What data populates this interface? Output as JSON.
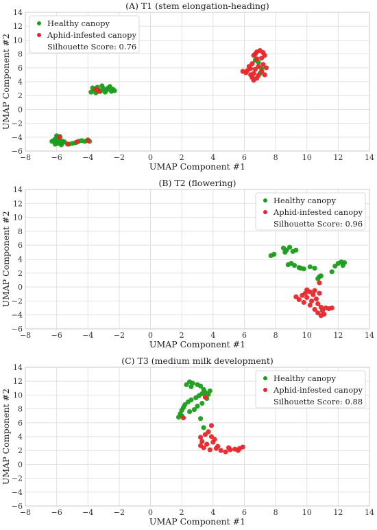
{
  "chart_data": [
    {
      "type": "scatter",
      "title": "(A) T1 (stem elongation-heading)",
      "xlabel": "UMAP Component #1",
      "ylabel": "UMAP Component #2",
      "xlim": [
        -8,
        14
      ],
      "ylim": [
        -6,
        14
      ],
      "xticks": [
        -8,
        -6,
        -4,
        -2,
        0,
        2,
        4,
        6,
        8,
        10,
        12,
        14
      ],
      "yticks": [
        -6,
        -4,
        -2,
        0,
        2,
        4,
        6,
        8,
        10,
        12,
        14
      ],
      "grid": true,
      "legend_position": "top-left",
      "silhouette_text": "Silhouette Score: 0.76",
      "series": [
        {
          "name": "Healthy canopy",
          "color": "#1a9e1a",
          "points": [
            [
              -6.2,
              -4.5
            ],
            [
              -6.0,
              -4.7
            ],
            [
              -5.8,
              -4.4
            ],
            [
              -5.9,
              -4.9
            ],
            [
              -6.1,
              -4.3
            ],
            [
              -5.7,
              -4.8
            ],
            [
              -6.3,
              -4.6
            ],
            [
              -5.6,
              -4.6
            ],
            [
              -5.9,
              -4.1
            ],
            [
              -6.0,
              -3.8
            ],
            [
              -5.8,
              -3.9
            ],
            [
              -5.5,
              -4.7
            ],
            [
              -5.2,
              -5.0
            ],
            [
              -5.0,
              -4.9
            ],
            [
              -4.8,
              -4.8
            ],
            [
              -4.6,
              -4.6
            ],
            [
              -4.4,
              -4.5
            ],
            [
              -4.2,
              -4.6
            ],
            [
              -4.0,
              -4.4
            ],
            [
              -3.9,
              -4.6
            ],
            [
              -5.7,
              -5.1
            ],
            [
              -6.1,
              -5.0
            ],
            [
              -3.8,
              2.5
            ],
            [
              -3.6,
              2.9
            ],
            [
              -3.4,
              3.2
            ],
            [
              -3.2,
              2.6
            ],
            [
              -3.0,
              3.0
            ],
            [
              -2.8,
              2.8
            ],
            [
              -2.6,
              3.3
            ],
            [
              -2.4,
              2.9
            ],
            [
              -2.3,
              2.7
            ],
            [
              -3.5,
              2.4
            ],
            [
              -3.1,
              3.4
            ],
            [
              -2.9,
              2.5
            ],
            [
              -3.7,
              3.1
            ],
            [
              -2.5,
              2.6
            ],
            [
              -3.3,
              2.8
            ],
            [
              -2.7,
              3.1
            ],
            [
              6.9,
              6.8
            ],
            [
              7.1,
              5.9
            ],
            [
              6.7,
              7.1
            ],
            [
              7.0,
              5.2
            ]
          ]
        },
        {
          "name": "Aphid-infested canopy",
          "color": "#e8262a",
          "points": [
            [
              -5.8,
              -4.0
            ],
            [
              -5.3,
              -5.0
            ],
            [
              -4.7,
              -4.7
            ],
            [
              -4.0,
              -4.5
            ],
            [
              -3.5,
              2.9
            ],
            [
              -3.3,
              2.6
            ],
            [
              5.9,
              5.5
            ],
            [
              6.1,
              5.3
            ],
            [
              6.2,
              5.6
            ],
            [
              6.4,
              5.0
            ],
            [
              6.5,
              4.6
            ],
            [
              6.6,
              4.2
            ],
            [
              6.8,
              4.5
            ],
            [
              6.7,
              5.8
            ],
            [
              6.9,
              6.2
            ],
            [
              6.5,
              6.6
            ],
            [
              6.8,
              7.3
            ],
            [
              6.6,
              7.8
            ],
            [
              6.8,
              8.3
            ],
            [
              7.0,
              8.5
            ],
            [
              7.2,
              8.2
            ],
            [
              7.3,
              7.8
            ],
            [
              7.1,
              7.4
            ],
            [
              7.2,
              6.5
            ],
            [
              7.4,
              6.0
            ],
            [
              7.1,
              5.5
            ],
            [
              6.9,
              4.9
            ],
            [
              6.4,
              5.9
            ],
            [
              6.3,
              6.2
            ],
            [
              7.3,
              5.0
            ],
            [
              6.7,
              8.0
            ],
            [
              6.6,
              5.2
            ]
          ]
        }
      ]
    },
    {
      "type": "scatter",
      "title": "(B) T2 (flowering)",
      "xlabel": "UMAP Component #1",
      "ylabel": "UMAP Component #2",
      "xlim": [
        -8,
        14
      ],
      "ylim": [
        -6,
        14
      ],
      "xticks": [
        -8,
        -6,
        -4,
        -2,
        0,
        2,
        4,
        6,
        8,
        10,
        12,
        14
      ],
      "yticks": [
        -6,
        -4,
        -2,
        0,
        2,
        4,
        6,
        8,
        10,
        12,
        14
      ],
      "grid": true,
      "legend_position": "top-right",
      "silhouette_text": "Silhouette Score: 0.96",
      "series": [
        {
          "name": "Healthy canopy",
          "color": "#1a9e1a",
          "points": [
            [
              7.7,
              4.5
            ],
            [
              7.9,
              4.7
            ],
            [
              8.5,
              5.6
            ],
            [
              8.7,
              5.3
            ],
            [
              8.9,
              5.7
            ],
            [
              9.1,
              5.1
            ],
            [
              9.3,
              5.3
            ],
            [
              8.6,
              5.0
            ],
            [
              8.8,
              3.2
            ],
            [
              9.0,
              3.4
            ],
            [
              9.2,
              3.1
            ],
            [
              9.5,
              2.8
            ],
            [
              9.8,
              2.6
            ],
            [
              10.2,
              2.9
            ],
            [
              10.5,
              2.7
            ],
            [
              10.8,
              1.5
            ],
            [
              10.7,
              1.2
            ],
            [
              10.9,
              1.6
            ],
            [
              11.6,
              2.2
            ],
            [
              11.8,
              3.0
            ],
            [
              12.0,
              3.4
            ],
            [
              12.2,
              3.6
            ],
            [
              12.4,
              3.5
            ],
            [
              12.3,
              3.1
            ],
            [
              9.6,
              2.7
            ]
          ]
        },
        {
          "name": "Aphid-infested canopy",
          "color": "#e8262a",
          "points": [
            [
              9.3,
              -1.4
            ],
            [
              9.5,
              -1.8
            ],
            [
              9.7,
              -1.2
            ],
            [
              9.9,
              -0.9
            ],
            [
              10.0,
              -1.5
            ],
            [
              10.2,
              -0.7
            ],
            [
              10.3,
              -2.0
            ],
            [
              10.4,
              -1.1
            ],
            [
              10.5,
              -0.5
            ],
            [
              10.6,
              -1.7
            ],
            [
              10.7,
              -2.4
            ],
            [
              10.8,
              -0.9
            ],
            [
              10.9,
              -2.9
            ],
            [
              11.0,
              -3.4
            ],
            [
              11.1,
              -3.9
            ],
            [
              10.9,
              -4.1
            ],
            [
              10.7,
              -3.7
            ],
            [
              10.5,
              -3.2
            ],
            [
              11.2,
              -3.0
            ],
            [
              11.4,
              -3.1
            ],
            [
              11.6,
              -3.0
            ],
            [
              10.8,
              0.6
            ],
            [
              10.2,
              -2.6
            ],
            [
              10.0,
              -0.4
            ],
            [
              9.8,
              -2.2
            ]
          ]
        }
      ]
    },
    {
      "type": "scatter",
      "title": "(C) T3 (medium milk development)",
      "xlabel": "UMAP Component #1",
      "ylabel": "UMAP Component #2",
      "xlim": [
        -8,
        14
      ],
      "ylim": [
        -6,
        14
      ],
      "xticks": [
        -8,
        -6,
        -4,
        -2,
        0,
        2,
        4,
        6,
        8,
        10,
        12,
        14
      ],
      "yticks": [
        -6,
        -4,
        -2,
        0,
        2,
        4,
        6,
        8,
        10,
        12,
        14
      ],
      "grid": true,
      "legend_position": "top-right",
      "silhouette_text": "Silhouette Score: 0.88",
      "series": [
        {
          "name": "Healthy canopy",
          "color": "#1a9e1a",
          "points": [
            [
              1.8,
              6.8
            ],
            [
              1.9,
              7.3
            ],
            [
              2.0,
              7.8
            ],
            [
              2.1,
              8.2
            ],
            [
              2.0,
              7.0
            ],
            [
              2.2,
              8.6
            ],
            [
              2.4,
              9.0
            ],
            [
              2.6,
              9.3
            ],
            [
              2.9,
              9.6
            ],
            [
              3.1,
              9.9
            ],
            [
              3.3,
              10.2
            ],
            [
              3.5,
              10.4
            ],
            [
              3.7,
              10.1
            ],
            [
              3.4,
              10.8
            ],
            [
              3.2,
              11.3
            ],
            [
              3.0,
              11.5
            ],
            [
              2.7,
              11.7
            ],
            [
              2.5,
              11.9
            ],
            [
              2.3,
              11.5
            ],
            [
              2.6,
              11.2
            ],
            [
              3.6,
              9.5
            ],
            [
              3.3,
              8.8
            ],
            [
              3.0,
              8.4
            ],
            [
              2.8,
              7.9
            ],
            [
              3.2,
              6.6
            ],
            [
              3.4,
              5.3
            ],
            [
              2.5,
              7.6
            ],
            [
              3.8,
              10.6
            ]
          ]
        },
        {
          "name": "Aphid-infested canopy",
          "color": "#e8262a",
          "points": [
            [
              2.1,
              6.7
            ],
            [
              3.2,
              3.9
            ],
            [
              3.5,
              4.3
            ],
            [
              3.7,
              4.7
            ],
            [
              3.9,
              4.0
            ],
            [
              4.1,
              3.6
            ],
            [
              3.3,
              3.3
            ],
            [
              3.6,
              2.9
            ],
            [
              3.4,
              2.4
            ],
            [
              3.8,
              2.1
            ],
            [
              4.2,
              2.3
            ],
            [
              4.5,
              2.0
            ],
            [
              4.8,
              1.8
            ],
            [
              5.1,
              2.1
            ],
            [
              5.4,
              2.2
            ],
            [
              5.7,
              2.3
            ],
            [
              5.9,
              2.5
            ],
            [
              5.6,
              2.0
            ],
            [
              4.0,
              3.2
            ],
            [
              3.9,
              5.6
            ],
            [
              3.5,
              9.7
            ],
            [
              4.3,
              2.6
            ],
            [
              3.2,
              2.7
            ],
            [
              5.0,
              2.4
            ]
          ]
        }
      ]
    }
  ]
}
